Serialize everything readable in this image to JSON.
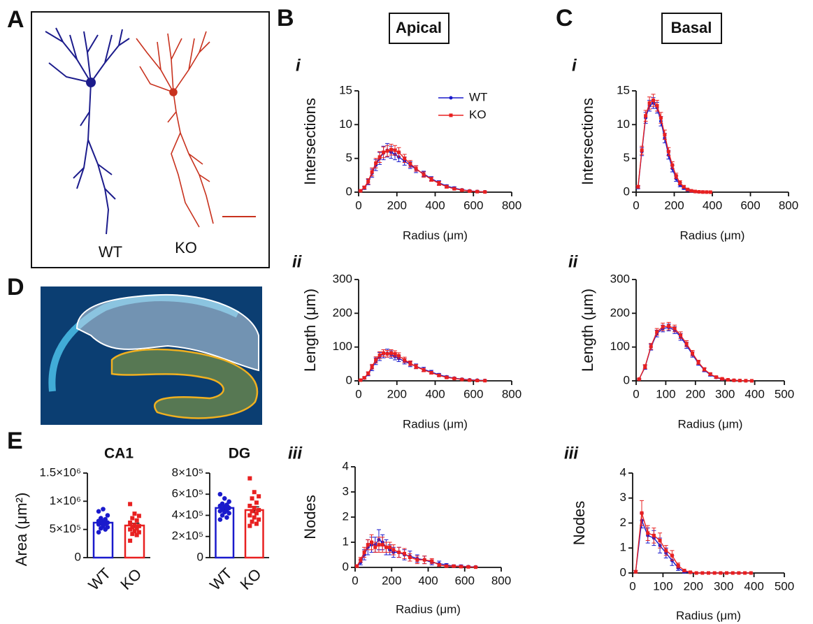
{
  "panel_labels": [
    "A",
    "B",
    "C",
    "D",
    "E"
  ],
  "headers": [
    "Apical",
    "Basal"
  ],
  "row_labels": [
    "i",
    "ii",
    "iii"
  ],
  "panel_a": {
    "labels": [
      "WT",
      "KO"
    ]
  },
  "chart_data": [
    {
      "type": "line",
      "x_label": "Radius (μm)",
      "y_label": "Intersections",
      "legend": "upper right",
      "xlim": [
        0,
        800
      ],
      "xticks": [
        0,
        200,
        400,
        600,
        800
      ],
      "ylim": [
        0,
        15
      ],
      "yticks": [
        0,
        5,
        10,
        15
      ],
      "x": [
        10,
        30,
        50,
        70,
        90,
        110,
        130,
        150,
        170,
        190,
        210,
        240,
        270,
        300,
        340,
        380,
        420,
        460,
        500,
        540,
        580,
        620,
        660
      ],
      "series": [
        {
          "name": "WT",
          "color": "#1a1acc",
          "marker": "circle",
          "values": [
            0.2,
            0.6,
            1.5,
            2.8,
            4.0,
            5.0,
            5.8,
            6.2,
            5.9,
            5.6,
            5.2,
            4.6,
            4.0,
            3.4,
            2.7,
            2.0,
            1.4,
            0.9,
            0.6,
            0.35,
            0.2,
            0.1,
            0.05
          ],
          "errors": [
            0.1,
            0.2,
            0.4,
            0.6,
            0.8,
            0.9,
            1.0,
            1.0,
            0.9,
            0.8,
            0.7,
            0.6,
            0.5,
            0.5,
            0.4,
            0.3,
            0.3,
            0.2,
            0.2,
            0.1,
            0.1,
            0.1,
            0.05
          ]
        },
        {
          "name": "KO",
          "color": "#e82020",
          "marker": "square",
          "values": [
            0.2,
            0.7,
            1.6,
            3.0,
            4.3,
            5.2,
            5.9,
            6.1,
            6.3,
            6.2,
            5.9,
            5.0,
            4.2,
            3.5,
            2.6,
            1.9,
            1.3,
            0.8,
            0.5,
            0.3,
            0.15,
            0.08,
            0.03
          ],
          "errors": [
            0.1,
            0.2,
            0.4,
            0.6,
            0.7,
            0.8,
            0.8,
            0.8,
            0.8,
            0.7,
            0.7,
            0.6,
            0.5,
            0.4,
            0.4,
            0.3,
            0.3,
            0.2,
            0.1,
            0.1,
            0.1,
            0.05,
            0.03
          ]
        }
      ]
    },
    {
      "type": "line",
      "x_label": "Radius (μm)",
      "y_label": "Length (μm)",
      "xlim": [
        0,
        800
      ],
      "xticks": [
        0,
        200,
        400,
        600,
        800
      ],
      "ylim": [
        0,
        300
      ],
      "yticks": [
        0,
        100,
        200,
        300
      ],
      "x": [
        10,
        30,
        50,
        70,
        90,
        110,
        130,
        150,
        170,
        190,
        210,
        240,
        270,
        300,
        340,
        380,
        420,
        460,
        500,
        540,
        580,
        620,
        660
      ],
      "series": [
        {
          "name": "WT",
          "color": "#1a1acc",
          "marker": "circle",
          "values": [
            2,
            8,
            20,
            38,
            58,
            72,
            80,
            82,
            78,
            72,
            66,
            58,
            50,
            43,
            34,
            26,
            18,
            12,
            8,
            5,
            3,
            2,
            1
          ],
          "errors": [
            1,
            3,
            5,
            8,
            10,
            12,
            12,
            12,
            11,
            10,
            9,
            8,
            8,
            7,
            6,
            5,
            4,
            3,
            2,
            2,
            1,
            1,
            1
          ]
        },
        {
          "name": "KO",
          "color": "#e82020",
          "marker": "square",
          "values": [
            2,
            9,
            22,
            42,
            62,
            76,
            82,
            80,
            82,
            80,
            74,
            62,
            52,
            42,
            32,
            24,
            16,
            10,
            7,
            4,
            2,
            1,
            0.5
          ],
          "errors": [
            1,
            3,
            5,
            7,
            9,
            10,
            10,
            10,
            10,
            9,
            9,
            8,
            7,
            6,
            5,
            4,
            3,
            3,
            2,
            1,
            1,
            1,
            0.5
          ]
        }
      ]
    },
    {
      "type": "line",
      "x_label": "Radius (μm)",
      "y_label": "Nodes",
      "xlim": [
        0,
        800
      ],
      "xticks": [
        0,
        200,
        400,
        600,
        800
      ],
      "ylim": [
        0,
        4
      ],
      "yticks": [
        0,
        1,
        2,
        3,
        4
      ],
      "x": [
        10,
        30,
        50,
        70,
        90,
        110,
        130,
        150,
        170,
        190,
        210,
        240,
        270,
        300,
        340,
        380,
        420,
        460,
        500,
        540,
        580,
        620,
        660
      ],
      "series": [
        {
          "name": "WT",
          "color": "#1a1acc",
          "marker": "circle",
          "values": [
            0.05,
            0.2,
            0.5,
            0.8,
            0.9,
            0.9,
            1.1,
            1.0,
            0.8,
            0.7,
            0.6,
            0.6,
            0.5,
            0.45,
            0.35,
            0.3,
            0.2,
            0.15,
            0.1,
            0.05,
            0.05,
            0.03,
            0.02
          ],
          "errors": [
            0.05,
            0.1,
            0.2,
            0.3,
            0.3,
            0.3,
            0.4,
            0.3,
            0.3,
            0.2,
            0.2,
            0.2,
            0.2,
            0.2,
            0.15,
            0.15,
            0.1,
            0.1,
            0.05,
            0.05,
            0.05,
            0.03,
            0.02
          ]
        },
        {
          "name": "KO",
          "color": "#e82020",
          "marker": "square",
          "values": [
            0.05,
            0.3,
            0.6,
            0.9,
            1.0,
            0.8,
            0.9,
            0.9,
            0.8,
            0.8,
            0.7,
            0.6,
            0.55,
            0.4,
            0.3,
            0.3,
            0.25,
            0.1,
            0.05,
            0.05,
            0.03,
            0.02,
            0.01
          ],
          "errors": [
            0.05,
            0.1,
            0.2,
            0.2,
            0.3,
            0.2,
            0.3,
            0.3,
            0.2,
            0.2,
            0.2,
            0.2,
            0.2,
            0.15,
            0.15,
            0.15,
            0.1,
            0.05,
            0.05,
            0.03,
            0.03,
            0.02,
            0.01
          ]
        }
      ]
    },
    {
      "type": "line",
      "x_label": "Radius (μm)",
      "y_label": "Intersections",
      "xlim": [
        0,
        800
      ],
      "xticks": [
        0,
        200,
        400,
        600,
        800
      ],
      "ylim": [
        0,
        15
      ],
      "yticks": [
        0,
        5,
        10,
        15
      ],
      "x": [
        10,
        30,
        50,
        70,
        90,
        110,
        130,
        150,
        170,
        190,
        210,
        230,
        250,
        270,
        290,
        310,
        330,
        350,
        370,
        390
      ],
      "series": [
        {
          "name": "WT",
          "color": "#1a1acc",
          "marker": "circle",
          "values": [
            0.7,
            6,
            11,
            12.8,
            13.2,
            12.5,
            10.5,
            8,
            5.5,
            3.5,
            2,
            1.1,
            0.6,
            0.3,
            0.15,
            0.08,
            0.04,
            0.02,
            0.01,
            0
          ],
          "errors": [
            0.2,
            0.6,
            0.8,
            0.8,
            0.8,
            0.8,
            0.7,
            0.7,
            0.6,
            0.5,
            0.4,
            0.3,
            0.2,
            0.1,
            0.1,
            0.05,
            0.03,
            0.02,
            0.01,
            0
          ]
        },
        {
          "name": "KO",
          "color": "#e82020",
          "marker": "square",
          "values": [
            0.8,
            6.2,
            11.3,
            13.2,
            13.6,
            12.8,
            11,
            8.5,
            6,
            4,
            2.4,
            1.4,
            0.8,
            0.4,
            0.2,
            0.1,
            0.05,
            0.02,
            0.01,
            0
          ],
          "errors": [
            0.2,
            0.6,
            0.8,
            0.9,
            0.9,
            0.8,
            0.8,
            0.7,
            0.6,
            0.5,
            0.4,
            0.3,
            0.2,
            0.1,
            0.1,
            0.05,
            0.03,
            0.02,
            0.01,
            0
          ]
        }
      ]
    },
    {
      "type": "line",
      "x_label": "Radius (μm)",
      "y_label": "Length (μm)",
      "xlim": [
        0,
        500
      ],
      "xticks": [
        0,
        100,
        200,
        300,
        400,
        500
      ],
      "ylim": [
        0,
        300
      ],
      "yticks": [
        0,
        100,
        200,
        300
      ],
      "x": [
        10,
        30,
        50,
        70,
        90,
        110,
        130,
        150,
        170,
        190,
        210,
        230,
        250,
        270,
        290,
        310,
        330,
        350,
        370,
        390
      ],
      "series": [
        {
          "name": "WT",
          "color": "#1a1acc",
          "marker": "circle",
          "values": [
            5,
            40,
            100,
            140,
            155,
            158,
            150,
            130,
            105,
            78,
            52,
            32,
            18,
            10,
            5,
            3,
            1.5,
            0.8,
            0.3,
            0.1
          ],
          "errors": [
            2,
            6,
            9,
            10,
            10,
            10,
            10,
            10,
            9,
            8,
            6,
            5,
            4,
            3,
            2,
            1,
            1,
            0.5,
            0.3,
            0.1
          ]
        },
        {
          "name": "KO",
          "color": "#e82020",
          "marker": "square",
          "values": [
            5,
            42,
            102,
            145,
            160,
            162,
            155,
            135,
            110,
            82,
            55,
            34,
            20,
            11,
            6,
            3,
            1.5,
            0.8,
            0.3,
            0.1
          ],
          "errors": [
            2,
            6,
            9,
            10,
            11,
            11,
            10,
            10,
            9,
            8,
            6,
            5,
            4,
            3,
            2,
            1,
            1,
            0.5,
            0.3,
            0.1
          ]
        }
      ]
    },
    {
      "type": "line",
      "x_label": "Radius (μm)",
      "y_label": "Nodes",
      "xlim": [
        0,
        500
      ],
      "xticks": [
        0,
        100,
        200,
        300,
        400,
        500
      ],
      "ylim": [
        0,
        4
      ],
      "yticks": [
        0,
        1,
        2,
        3,
        4
      ],
      "x": [
        10,
        30,
        50,
        70,
        90,
        110,
        130,
        150,
        170,
        190,
        210,
        230,
        250,
        270,
        290,
        310,
        330,
        350,
        370,
        390
      ],
      "series": [
        {
          "name": "WT",
          "color": "#1a1acc",
          "marker": "circle",
          "values": [
            0.05,
            2.1,
            1.5,
            1.4,
            1.1,
            0.8,
            0.5,
            0.2,
            0.05,
            0.02,
            0,
            0,
            0,
            0,
            0,
            0,
            0,
            0,
            0,
            0
          ],
          "errors": [
            0.05,
            0.3,
            0.3,
            0.3,
            0.3,
            0.2,
            0.2,
            0.1,
            0.05,
            0.02,
            0,
            0,
            0,
            0,
            0,
            0,
            0,
            0,
            0,
            0
          ]
        },
        {
          "name": "KO",
          "color": "#e82020",
          "marker": "square",
          "values": [
            0.05,
            2.4,
            1.6,
            1.5,
            1.3,
            0.9,
            0.7,
            0.3,
            0.1,
            0.03,
            0,
            0,
            0,
            0,
            0,
            0,
            0,
            0,
            0,
            0
          ],
          "errors": [
            0.05,
            0.5,
            0.3,
            0.3,
            0.3,
            0.2,
            0.2,
            0.1,
            0.05,
            0.02,
            0,
            0,
            0,
            0,
            0,
            0,
            0,
            0,
            0,
            0
          ]
        }
      ]
    },
    {
      "type": "bar",
      "title": "CA1",
      "y_label": "Area (μm²)",
      "categories": [
        "WT",
        "KO"
      ],
      "colors": [
        "#1a1acc",
        "#e82020"
      ],
      "ylim": [
        0,
        1500000
      ],
      "yticks": [
        0,
        {
          "value": 500000,
          "label": "5×10⁵"
        },
        {
          "value": 1000000,
          "label": "1×10⁶"
        },
        {
          "value": 1500000,
          "label": "1.5×10⁶"
        }
      ],
      "values": [
        620000,
        570000
      ],
      "errors": [
        30000,
        40000
      ],
      "points": [
        [
          820000,
          860000,
          750000,
          700000,
          680000,
          650000,
          640000,
          620000,
          610000,
          600000,
          590000,
          560000,
          540000,
          520000,
          500000,
          450000
        ],
        [
          950000,
          780000,
          740000,
          700000,
          660000,
          620000,
          580000,
          560000,
          540000,
          520000,
          500000,
          470000,
          450000,
          420000,
          400000,
          300000
        ]
      ]
    },
    {
      "type": "bar",
      "title": "DG",
      "categories": [
        "WT",
        "KO"
      ],
      "colors": [
        "#1a1acc",
        "#e82020"
      ],
      "ylim": [
        0,
        800000
      ],
      "yticks": [
        0,
        {
          "value": 200000,
          "label": "2×10⁵"
        },
        {
          "value": 400000,
          "label": "4×10⁵"
        },
        {
          "value": 600000,
          "label": "6×10⁵"
        },
        {
          "value": 800000,
          "label": "8×10⁵"
        }
      ],
      "values": [
        470000,
        450000
      ],
      "errors": [
        20000,
        30000
      ],
      "points": [
        [
          600000,
          560000,
          530000,
          510000,
          500000,
          490000,
          480000,
          470000,
          460000,
          450000,
          440000,
          430000,
          420000,
          400000,
          380000,
          360000
        ],
        [
          750000,
          620000,
          580000,
          560000,
          520000,
          490000,
          470000,
          450000,
          440000,
          420000,
          400000,
          380000,
          360000,
          340000,
          320000,
          300000
        ]
      ]
    }
  ]
}
